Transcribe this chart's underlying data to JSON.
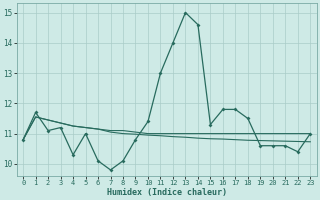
{
  "x": [
    0,
    1,
    2,
    3,
    4,
    5,
    6,
    7,
    8,
    9,
    10,
    11,
    12,
    13,
    14,
    15,
    16,
    17,
    18,
    19,
    20,
    21,
    22,
    23
  ],
  "line1": [
    10.8,
    11.7,
    11.1,
    11.2,
    10.3,
    11.0,
    10.1,
    9.8,
    10.1,
    10.8,
    11.4,
    13.0,
    14.0,
    15.0,
    14.6,
    11.3,
    11.8,
    11.8,
    11.5,
    10.6,
    10.6,
    10.6,
    10.4,
    11.0
  ],
  "line2": [
    10.8,
    11.55,
    11.45,
    11.35,
    11.25,
    11.2,
    11.15,
    11.1,
    11.1,
    11.05,
    11.0,
    11.0,
    11.0,
    11.0,
    11.0,
    11.0,
    11.0,
    11.0,
    11.0,
    11.0,
    11.0,
    11.0,
    11.0,
    11.0
  ],
  "line3": [
    10.8,
    11.55,
    11.45,
    11.35,
    11.25,
    11.2,
    11.15,
    11.05,
    11.0,
    10.98,
    10.95,
    10.93,
    10.9,
    10.88,
    10.85,
    10.83,
    10.82,
    10.8,
    10.78,
    10.77,
    10.76,
    10.75,
    10.74,
    10.73
  ],
  "line_color": "#286b5e",
  "bg_color": "#ceeae6",
  "grid_color": "#aaccc8",
  "xlabel": "Humidex (Indice chaleur)",
  "ylim": [
    9.6,
    15.3
  ],
  "xlim": [
    -0.5,
    23.5
  ],
  "yticks": [
    10,
    11,
    12,
    13,
    14,
    15
  ],
  "xticks": [
    0,
    1,
    2,
    3,
    4,
    5,
    6,
    7,
    8,
    9,
    10,
    11,
    12,
    13,
    14,
    15,
    16,
    17,
    18,
    19,
    20,
    21,
    22,
    23
  ]
}
